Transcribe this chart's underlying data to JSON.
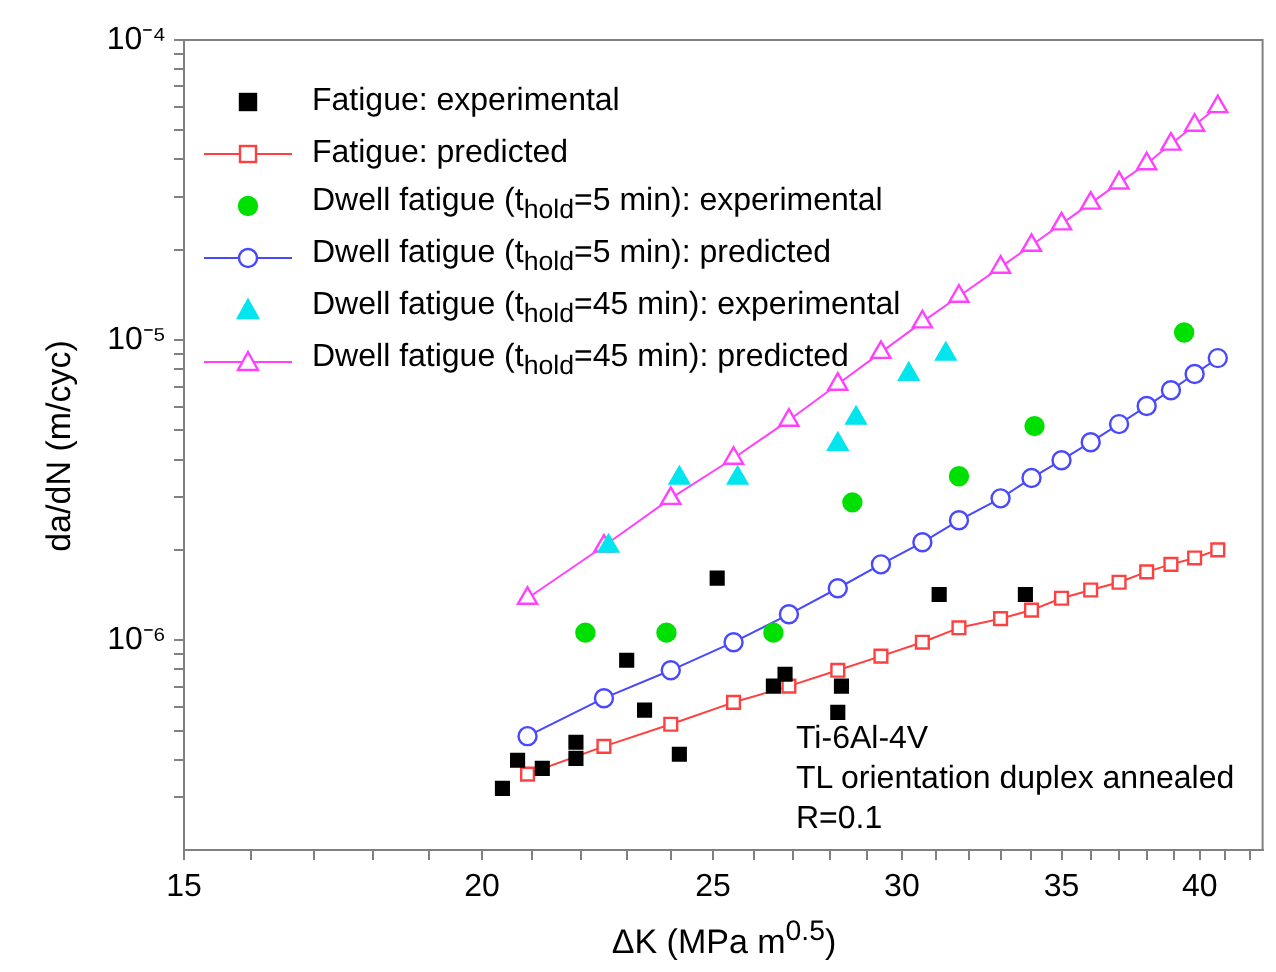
{
  "chart_data": {
    "type": "line",
    "xlabel": "ΔK (MPa m$^{0.5}$)",
    "ylabel": "da/dN (m/cyc)",
    "log": "xy",
    "legend": "top left",
    "grid": false,
    "xlim": [
      15,
      42.5
    ],
    "xticks": [
      15,
      {
        "value": 16,
        "label": null
      },
      {
        "value": 17,
        "label": null
      },
      {
        "value": 18,
        "label": null
      },
      {
        "value": 19,
        "label": null
      },
      20,
      {
        "value": 21,
        "label": null
      },
      {
        "value": 22,
        "label": null
      },
      {
        "value": 23,
        "label": null
      },
      {
        "value": 24,
        "label": null
      },
      25,
      {
        "value": 26,
        "label": null
      },
      {
        "value": 27,
        "label": null
      },
      {
        "value": 28,
        "label": null
      },
      {
        "value": 29,
        "label": null
      },
      30,
      {
        "value": 31,
        "label": null
      },
      {
        "value": 32,
        "label": null
      },
      {
        "value": 33,
        "label": null
      },
      {
        "value": 34,
        "label": null
      },
      35,
      {
        "value": 36,
        "label": null
      },
      {
        "value": 37,
        "label": null
      },
      {
        "value": 38,
        "label": null
      },
      {
        "value": 39,
        "label": null
      },
      40,
      {
        "value": 41,
        "label": null
      },
      {
        "value": 42,
        "label": null
      }
    ],
    "ylim": [
      2e-07,
      0.0001
    ],
    "yticks": [
      {
        "value": 3e-07,
        "label": null
      },
      {
        "value": 4e-07,
        "label": null
      },
      {
        "value": 5e-07,
        "label": null
      },
      {
        "value": 6e-07,
        "label": null
      },
      {
        "value": 7e-07,
        "label": null
      },
      {
        "value": 8e-07,
        "label": null
      },
      {
        "value": 9e-07,
        "label": null
      },
      {
        "value": 1e-06,
        "label": "10⁻⁶"
      },
      {
        "value": 2e-06,
        "label": null
      },
      {
        "value": 3e-06,
        "label": null
      },
      {
        "value": 4e-06,
        "label": null
      },
      {
        "value": 5e-06,
        "label": null
      },
      {
        "value": 6e-06,
        "label": null
      },
      {
        "value": 7e-06,
        "label": null
      },
      {
        "value": 8e-06,
        "label": null
      },
      {
        "value": 9e-06,
        "label": null
      },
      {
        "value": 1e-05,
        "label": "10⁻⁵"
      },
      {
        "value": 2e-05,
        "label": null
      },
      {
        "value": 3e-05,
        "label": null
      },
      {
        "value": 4e-05,
        "label": null
      },
      {
        "value": 5e-05,
        "label": null
      },
      {
        "value": 6e-05,
        "label": null
      },
      {
        "value": 7e-05,
        "label": null
      },
      {
        "value": 8e-05,
        "label": null
      },
      {
        "value": 9e-05,
        "label": null
      },
      {
        "value": 0.0001,
        "label": "10⁻⁴"
      }
    ],
    "annotations": [
      "Ti-6Al-4V",
      "TL orientation duplex annealed",
      "R=0.1"
    ],
    "series": [
      {
        "name": "Fatigue: experimental",
        "type": "scatter",
        "marker": "square",
        "color": "#000000",
        "x": [
          20.4,
          20.7,
          21.2,
          21.9,
          21.9,
          23.0,
          23.4,
          24.2,
          25.1,
          26.5,
          26.8,
          28.3,
          28.2,
          31.1,
          33.8
        ],
        "values": [
          3.21e-07,
          3.98e-07,
          3.74e-07,
          4.57e-07,
          4.04e-07,
          8.58e-07,
          5.85e-07,
          4.17e-07,
          1.61e-06,
          7.03e-07,
          7.7e-07,
          7.03e-07,
          5.75e-07,
          1.42e-06,
          1.42e-06
        ]
      },
      {
        "name": "Fatigue: predicted",
        "type": "line",
        "marker": "square",
        "color": "#ff4040",
        "x": [
          20.9,
          22.5,
          24.0,
          25.5,
          26.9,
          28.2,
          29.4,
          30.6,
          31.7,
          33.0,
          34.0,
          35.0,
          36.0,
          37.0,
          38.0,
          38.9,
          39.8,
          40.7
        ],
        "values": [
          3.58e-07,
          4.43e-07,
          5.25e-07,
          6.21e-07,
          7.03e-07,
          7.94e-07,
          8.85e-07,
          9.85e-07,
          1.1e-06,
          1.18e-06,
          1.26e-06,
          1.38e-06,
          1.47e-06,
          1.56e-06,
          1.69e-06,
          1.79e-06,
          1.88e-06,
          2e-06
        ]
      },
      {
        "name": "Dwell fatigue (t$_{hold}$=5 min): experimental",
        "type": "scatter",
        "marker": "circle",
        "color": "#00e000",
        "x": [
          22.1,
          23.9,
          26.5,
          28.6,
          31.7,
          34.1,
          39.4
        ],
        "values": [
          1.06e-06,
          1.06e-06,
          1.06e-06,
          2.88e-06,
          3.52e-06,
          5.17e-06,
          1.06e-05
        ]
      },
      {
        "name": "Dwell fatigue (t$_{hold}$=5 min): predicted",
        "type": "line",
        "marker": "circle",
        "color": "#4848ff",
        "x": [
          20.9,
          22.5,
          24.0,
          25.5,
          26.9,
          28.2,
          29.4,
          30.6,
          31.7,
          33.0,
          34.0,
          35.0,
          36.0,
          37.0,
          38.0,
          38.9,
          39.8,
          40.7
        ],
        "values": [
          4.79e-07,
          6.41e-07,
          7.94e-07,
          9.85e-07,
          1.22e-06,
          1.49e-06,
          1.79e-06,
          2.12e-06,
          2.51e-06,
          2.97e-06,
          3.47e-06,
          3.98e-06,
          4.57e-06,
          5.25e-06,
          6.03e-06,
          6.81e-06,
          7.71e-06,
          8.71e-06
        ]
      },
      {
        "name": "Dwell fatigue (t$_{hold}$=45 min): experimental",
        "type": "scatter",
        "marker": "triangle",
        "color": "#00e5ee",
        "x": [
          22.6,
          24.2,
          25.6,
          28.2,
          28.7,
          30.2,
          31.3
        ],
        "values": [
          2.06e-06,
          3.47e-06,
          3.47e-06,
          4.5e-06,
          5.5e-06,
          7.7e-06,
          8.98e-06
        ]
      },
      {
        "name": "Dwell fatigue (t$_{hold}$=45 min): predicted",
        "type": "line",
        "marker": "triangle",
        "color": "#ff40ff",
        "x": [
          20.9,
          22.5,
          24.0,
          25.5,
          26.9,
          28.2,
          29.4,
          30.6,
          31.7,
          33.0,
          34.0,
          35.0,
          36.0,
          37.0,
          38.0,
          38.9,
          39.8,
          40.7
        ],
        "values": [
          1.38e-06,
          2.06e-06,
          2.97e-06,
          4.04e-06,
          5.41e-06,
          7.13e-06,
          9.1e-06,
          1.15e-05,
          1.4e-05,
          1.75e-05,
          2.07e-05,
          2.44e-05,
          2.86e-05,
          3.34e-05,
          3.87e-05,
          4.5e-05,
          5.2e-05,
          6e-05
        ]
      }
    ]
  }
}
